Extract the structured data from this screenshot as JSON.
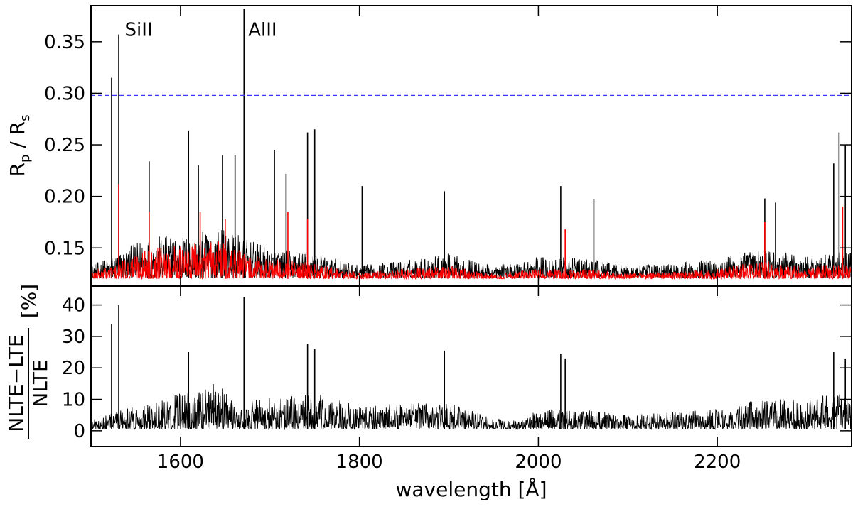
{
  "chart_data": [
    {
      "panel": "top",
      "type": "line",
      "xlabel": "wavelength [Å]",
      "ylabel_main": "R",
      "ylabel_sub1": "p",
      "ylabel_mid": " / R",
      "ylabel_sub2": "s",
      "xlim": [
        1500,
        2350
      ],
      "ylim": [
        0.113,
        0.385
      ],
      "xticks": [
        1600,
        1800,
        2000,
        2200
      ],
      "xtick_labels": [
        "1600",
        "1800",
        "2000",
        "2200"
      ],
      "yticks": [
        0.15,
        0.2,
        0.25,
        0.3,
        0.35
      ],
      "ytick_labels": [
        "0.15",
        "0.20",
        "0.25",
        "0.30",
        "0.35"
      ],
      "reference_line": {
        "y": 0.298,
        "color": "#3a3aff",
        "style": "dashed"
      },
      "annotations": [
        {
          "text": "SiII",
          "x": 1533,
          "y": 0.357
        },
        {
          "text": "AlII",
          "x": 1671,
          "y": 0.357
        }
      ],
      "series": [
        {
          "color": "#000000",
          "baseline": 0.121,
          "envelope": [
            [
              1500,
              0.133
            ],
            [
              1530,
              0.145
            ],
            [
              1560,
              0.16
            ],
            [
              1580,
              0.162
            ],
            [
              1620,
              0.165
            ],
            [
              1650,
              0.17
            ],
            [
              1670,
              0.16
            ],
            [
              1700,
              0.15
            ],
            [
              1750,
              0.145
            ],
            [
              1800,
              0.133
            ],
            [
              1850,
              0.138
            ],
            [
              1900,
              0.145
            ],
            [
              1950,
              0.132
            ],
            [
              2000,
              0.142
            ],
            [
              2050,
              0.14
            ],
            [
              2100,
              0.133
            ],
            [
              2150,
              0.135
            ],
            [
              2200,
              0.14
            ],
            [
              2250,
              0.15
            ],
            [
              2300,
              0.142
            ],
            [
              2350,
              0.148
            ]
          ],
          "peaks": [
            [
              1523,
              0.315
            ],
            [
              1531,
              0.357
            ],
            [
              1565,
              0.234
            ],
            [
              1609,
              0.264
            ],
            [
              1620,
              0.23
            ],
            [
              1647,
              0.24
            ],
            [
              1661,
              0.24
            ],
            [
              1671,
              0.382
            ],
            [
              1705,
              0.245
            ],
            [
              1718,
              0.222
            ],
            [
              1742,
              0.262
            ],
            [
              1750,
              0.265
            ],
            [
              1803,
              0.21
            ],
            [
              1895,
              0.205
            ],
            [
              2025,
              0.21
            ],
            [
              2062,
              0.197
            ],
            [
              2253,
              0.198
            ],
            [
              2265,
              0.194
            ],
            [
              2330,
              0.232
            ],
            [
              2336,
              0.262
            ],
            [
              2343,
              0.25
            ]
          ]
        },
        {
          "color": "#ff0000",
          "baseline": 0.12,
          "envelope": [
            [
              1500,
              0.128
            ],
            [
              1530,
              0.135
            ],
            [
              1560,
              0.15
            ],
            [
              1580,
              0.152
            ],
            [
              1620,
              0.155
            ],
            [
              1650,
              0.158
            ],
            [
              1670,
              0.145
            ],
            [
              1700,
              0.14
            ],
            [
              1750,
              0.135
            ],
            [
              1800,
              0.126
            ],
            [
              1850,
              0.13
            ],
            [
              1900,
              0.133
            ],
            [
              1950,
              0.125
            ],
            [
              2000,
              0.13
            ],
            [
              2050,
              0.13
            ],
            [
              2100,
              0.126
            ],
            [
              2150,
              0.127
            ],
            [
              2200,
              0.13
            ],
            [
              2250,
              0.138
            ],
            [
              2300,
              0.132
            ],
            [
              2350,
              0.135
            ]
          ],
          "peaks": [
            [
              1531,
              0.212
            ],
            [
              1565,
              0.185
            ],
            [
              1622,
              0.185
            ],
            [
              1650,
              0.178
            ],
            [
              1720,
              0.185
            ],
            [
              1742,
              0.178
            ],
            [
              2030,
              0.168
            ],
            [
              2253,
              0.175
            ],
            [
              2340,
              0.19
            ]
          ]
        }
      ]
    },
    {
      "panel": "bottom",
      "type": "line",
      "xlabel": "wavelength [Å]",
      "ylabel_num": "NLTE−LTE",
      "ylabel_den": "NLTE",
      "ylabel_unit": "[%]",
      "xlim": [
        1500,
        2350
      ],
      "ylim": [
        -5,
        46
      ],
      "xticks": [
        1600,
        1800,
        2000,
        2200
      ],
      "xtick_labels": [
        "1600",
        "1800",
        "2000",
        "2200"
      ],
      "yticks": [
        0,
        10,
        20,
        30,
        40
      ],
      "ytick_labels": [
        "0",
        "10",
        "20",
        "30",
        "40"
      ],
      "series": [
        {
          "color": "#000000",
          "baseline": 0.5,
          "envelope": [
            [
              1500,
              4
            ],
            [
              1550,
              8
            ],
            [
              1600,
              12
            ],
            [
              1650,
              16
            ],
            [
              1662,
              6
            ],
            [
              1680,
              10
            ],
            [
              1750,
              12
            ],
            [
              1800,
              8
            ],
            [
              1850,
              9
            ],
            [
              1900,
              9
            ],
            [
              1950,
              4
            ],
            [
              1980,
              3
            ],
            [
              2000,
              7
            ],
            [
              2050,
              7
            ],
            [
              2100,
              5
            ],
            [
              2150,
              6
            ],
            [
              2200,
              7
            ],
            [
              2250,
              10
            ],
            [
              2300,
              11
            ],
            [
              2350,
              12
            ]
          ],
          "peaks": [
            [
              1523,
              34
            ],
            [
              1531,
              40
            ],
            [
              1609,
              25
            ],
            [
              1671,
              42.5
            ],
            [
              1742,
              27.5
            ],
            [
              1750,
              26
            ],
            [
              1895,
              25.5
            ],
            [
              2025,
              24.5
            ],
            [
              2030,
              23
            ],
            [
              2330,
              25
            ],
            [
              2343,
              23
            ]
          ]
        }
      ]
    }
  ]
}
